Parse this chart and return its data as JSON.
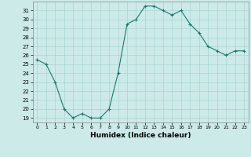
{
  "x": [
    0,
    1,
    2,
    3,
    4,
    5,
    6,
    7,
    8,
    9,
    10,
    11,
    12,
    13,
    14,
    15,
    16,
    17,
    18,
    19,
    20,
    21,
    22,
    23
  ],
  "y": [
    25.5,
    25.0,
    23.0,
    20.0,
    19.0,
    19.5,
    19.0,
    19.0,
    20.0,
    24.0,
    29.5,
    30.0,
    31.5,
    31.5,
    31.0,
    30.5,
    31.0,
    29.5,
    28.5,
    27.0,
    26.5,
    26.0,
    26.5,
    26.5
  ],
  "ylim": [
    18.5,
    32.0
  ],
  "yticks": [
    19,
    20,
    21,
    22,
    23,
    24,
    25,
    26,
    27,
    28,
    29,
    30,
    31
  ],
  "xlabel": "Humidex (Indice chaleur)",
  "line_color": "#1a7a6e",
  "marker": "+",
  "bg_color": "#cceae8",
  "grid_color": "#aad4d0",
  "title": ""
}
